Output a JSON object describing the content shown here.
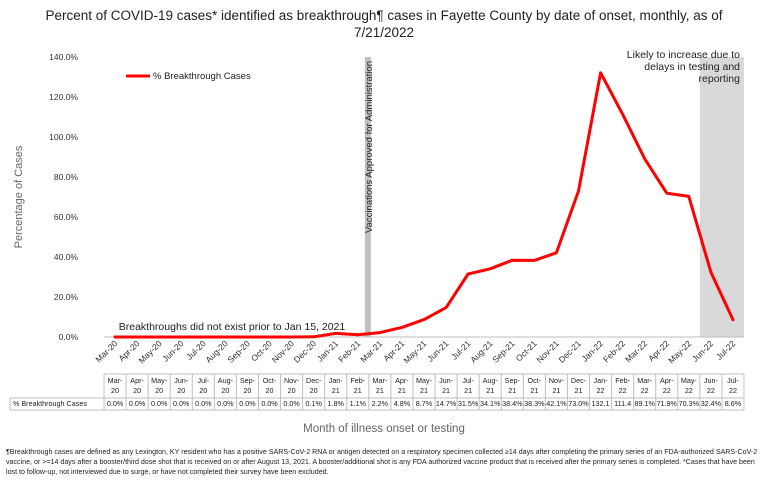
{
  "chart_data": {
    "type": "line",
    "title": "Percent of COVID-19 cases* identified as breakthrough¶ cases in Fayette County by date of onset, monthly, as of 7/21/2022",
    "xlabel": "Month of illness onset or testing",
    "ylabel": "Percentage of Cases",
    "ylim": [
      0,
      140
    ],
    "yticks": [
      "0.0%",
      "20.0%",
      "40.0%",
      "60.0%",
      "80.0%",
      "100.0%",
      "120.0%",
      "140.0%"
    ],
    "grid": false,
    "legend_position": "top-left",
    "categories": [
      "Mar-20",
      "Apr-20",
      "May-20",
      "Jun-20",
      "Jul-20",
      "Aug-20",
      "Sep-20",
      "Oct-20",
      "Nov-20",
      "Dec-20",
      "Jan-21",
      "Feb-21",
      "Mar-21",
      "Apr-21",
      "May-21",
      "Jun-21",
      "Jul-21",
      "Aug-21",
      "Sep-21",
      "Oct-21",
      "Nov-21",
      "Dec-21",
      "Jan-22",
      "Feb-22",
      "Mar-22",
      "Apr-22",
      "May-22",
      "Jun-22",
      "Jul-22"
    ],
    "series": [
      {
        "name": "% Breakthrough Cases",
        "color": "#ff0000",
        "values": [
          0.0,
          0.0,
          0.0,
          0.0,
          0.0,
          0.0,
          0.0,
          0.0,
          0.0,
          0.1,
          1.8,
          1.1,
          2.2,
          4.8,
          8.7,
          14.7,
          31.5,
          34.1,
          38.4,
          38.3,
          42.1,
          73.0,
          132.1,
          111.4,
          89.1,
          71.9,
          70.3,
          32.4,
          8.6
        ]
      }
    ],
    "table": {
      "header_cells": [
        [
          "Mar-",
          "20"
        ],
        [
          "Apr-",
          "20"
        ],
        [
          "May-",
          "20"
        ],
        [
          "Jun-",
          "20"
        ],
        [
          "Jul-",
          "20"
        ],
        [
          "Aug-",
          "20"
        ],
        [
          "Sep-",
          "20"
        ],
        [
          "Oct-",
          "20"
        ],
        [
          "Nov-",
          "20"
        ],
        [
          "Dec-",
          "20"
        ],
        [
          "Jan-",
          "21"
        ],
        [
          "Feb-",
          "21"
        ],
        [
          "Mar-",
          "21"
        ],
        [
          "Apr-",
          "21"
        ],
        [
          "May-",
          "21"
        ],
        [
          "Jun-",
          "21"
        ],
        [
          "Jul-",
          "21"
        ],
        [
          "Aug-",
          "21"
        ],
        [
          "Sep-",
          "21"
        ],
        [
          "Oct-",
          "21"
        ],
        [
          "Nov-",
          "21"
        ],
        [
          "Dec-",
          "21"
        ],
        [
          "Jan-",
          "22"
        ],
        [
          "Feb-",
          "22"
        ],
        [
          "Mar-",
          "22"
        ],
        [
          "Apr-",
          "22"
        ],
        [
          "May-",
          "22"
        ],
        [
          "Jun-",
          "22"
        ],
        [
          "Jul-",
          "22"
        ]
      ],
      "row_label": "% Breakthrough Cases",
      "row_values": [
        "0.0%",
        "0.0%",
        "0.0%",
        "0.0%",
        "0.0%",
        "0.0%",
        "0.0%",
        "0.0%",
        "0.0%",
        "0.1%",
        "1.8%",
        "1.1%",
        "2.2%",
        "4.8%",
        "8.7%",
        "14.7%",
        "31.5%",
        "34.1%",
        "38.4%",
        "38.3%",
        "42.1%",
        "73.0%",
        "132.1",
        "111.4",
        "89.1%",
        "71.9%",
        "70.3%",
        "32.4%",
        "8.6%"
      ]
    },
    "annotations": {
      "vaccination_label": "Vaccinations Approved for Administration",
      "vaccination_after": "Feb-21",
      "shaded_region": [
        "Jun-22",
        "Jul-22"
      ],
      "shaded_text": [
        "Likely to increase due to",
        "delays in testing and",
        "reporting"
      ],
      "prior_note": "Breakthroughs did not exist prior to Jan 15, 2021"
    },
    "colors": {
      "line": "#ff0000",
      "shade": "#d9d9d9",
      "vline": "#c0c0c0"
    }
  },
  "footnote": "¶Breakthrough cases are defined as any Lexington, KY resident who has a positive SARS-CoV-2 RNA or antigen detected on a respiratory specimen collected ≥14 days after completing the primary series of an FDA-authorized SARS-CoV-2 vaccine, or >=14 days after a booster/third dose shot that is received on or after August 13, 2021.  A booster/additional shot is any FDA authorized vaccine product that is received after the primary series is completed.  *Cases that have been lost to follow-up, not interviewed due to surge, or have not completed their survey have been excluded."
}
